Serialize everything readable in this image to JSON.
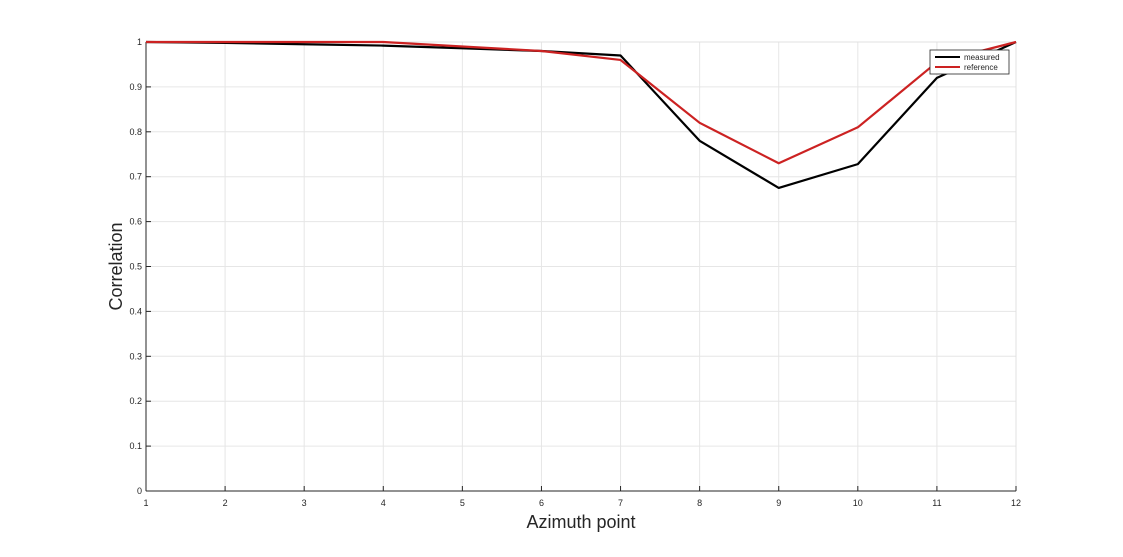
{
  "chart_data": {
    "type": "line",
    "title": "",
    "xlabel": "Azimuth point",
    "ylabel": "Correlation",
    "x": [
      1,
      2,
      3,
      4,
      5,
      6,
      7,
      8,
      9,
      10,
      11,
      12
    ],
    "xlim": [
      1,
      12
    ],
    "ylim": [
      0,
      1
    ],
    "xticks": [
      1,
      2,
      3,
      4,
      5,
      6,
      7,
      8,
      9,
      10,
      11,
      12
    ],
    "yticks": [
      0,
      0.1,
      0.2,
      0.3,
      0.4,
      0.5,
      0.6,
      0.7,
      0.8,
      0.9,
      1
    ],
    "ytick_labels": [
      "0",
      "0.1",
      "0.2",
      "0.3",
      "0.4",
      "0.5",
      "0.6",
      "0.7",
      "0.8",
      "0.9",
      "1"
    ],
    "grid": true,
    "legend_position": "top-right",
    "series": [
      {
        "name": "measured",
        "color": "#000000",
        "values": [
          1.0,
          0.998,
          0.995,
          0.992,
          0.986,
          0.98,
          0.97,
          0.78,
          0.675,
          0.728,
          0.92,
          1.0
        ]
      },
      {
        "name": "reference",
        "color": "#cc2222",
        "values": [
          1.0,
          1.0,
          1.0,
          1.0,
          0.99,
          0.98,
          0.96,
          0.82,
          0.73,
          0.81,
          0.955,
          1.0
        ]
      }
    ]
  }
}
